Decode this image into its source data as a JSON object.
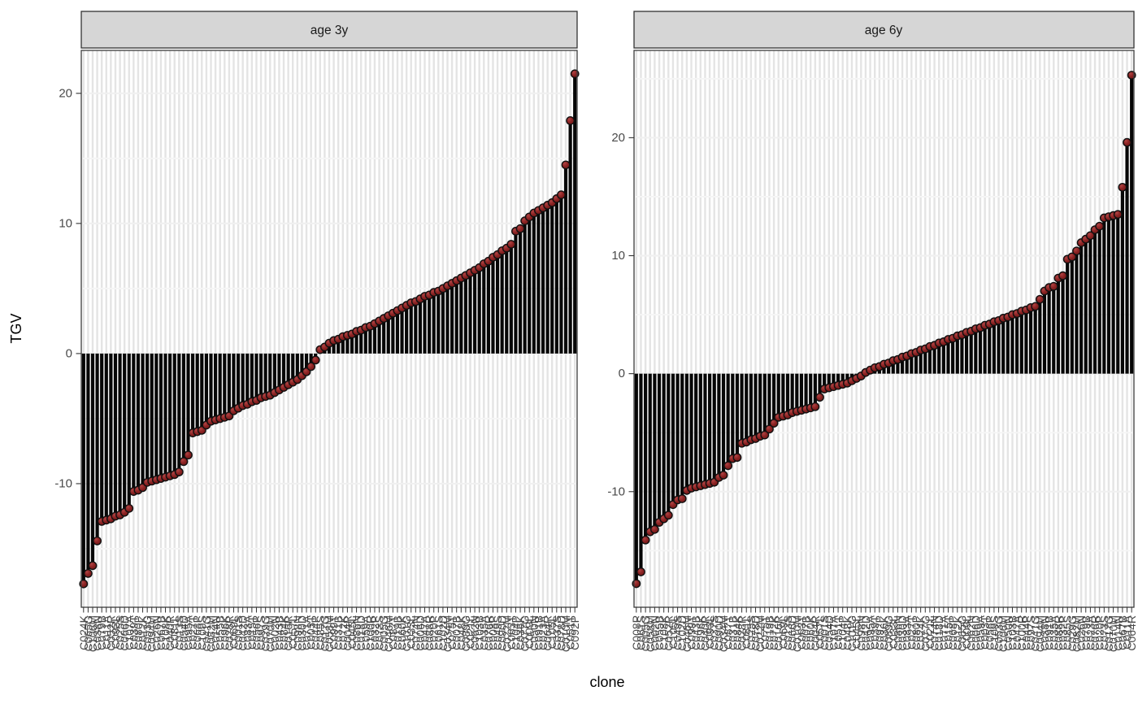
{
  "figure": {
    "x_axis_title": "clone",
    "y_axis_title": "TGV",
    "colors": {
      "bar": "#060606",
      "point_fill": "#8c2424",
      "point_fill_highlight": "#b04343",
      "point_fill_dark": "#6e1414",
      "point_stroke": "#101010",
      "strip_bg": "#d6d6d6",
      "panel_border": "#3c3c3c",
      "grid_vertical": "#e4e4e4",
      "grid_major": "#f0f0f0",
      "grid_minor": "#f5f5f5",
      "axis_text": "#4a4a4a",
      "tick": "#333333"
    }
  },
  "chart_data": [
    {
      "type": "bar",
      "facet": "age 3y",
      "xlabel": "clone",
      "ylabel": "TGV",
      "ylim": [
        -19.5,
        23.3
      ],
      "yticks_major": [
        -10,
        0,
        10,
        20
      ],
      "yticks_minor": [
        -15,
        -5,
        5,
        15
      ],
      "legend": "none",
      "categories": [
        "C024K",
        "C065G",
        "C106M",
        "C038N",
        "C079B",
        "C011A",
        "C052R",
        "C093L",
        "C025S",
        "C066D",
        "C107A",
        "C039T",
        "C080P",
        "C012K",
        "C053G",
        "C094M",
        "C026N",
        "C067B",
        "C108K",
        "C040R",
        "C081L",
        "C013S",
        "C054D",
        "C095A",
        "C027T",
        "C068P",
        "C109S",
        "C041G",
        "C082M",
        "C014N",
        "C055B",
        "C096K",
        "C028R",
        "C069L",
        "C001S",
        "C042D",
        "C083A",
        "C015T",
        "C056P",
        "C097S",
        "C029G",
        "C070M",
        "C002N",
        "C043B",
        "C084K",
        "C016R",
        "C057L",
        "C098N",
        "C030D",
        "C071A",
        "C003T",
        "C044P",
        "C085S",
        "C017G",
        "C058M",
        "C099T",
        "C031B",
        "C072K",
        "C004R",
        "C045L",
        "C086N",
        "C018D",
        "C059A",
        "C100R",
        "C032P",
        "C073S",
        "C005G",
        "C046M",
        "C087T",
        "C019B",
        "C060K",
        "C101G",
        "C033L",
        "C074N",
        "C006D",
        "C047A",
        "C088R",
        "C020P",
        "C061S",
        "C102D",
        "C034M",
        "C075T",
        "C007B",
        "C048K",
        "C089G",
        "C021L",
        "C062N",
        "C103B",
        "C035A",
        "C076R",
        "C008P",
        "C049S",
        "C090D",
        "C022M",
        "C063T",
        "C104P",
        "C036K",
        "C077G",
        "C009L",
        "C050N",
        "C091B",
        "C023A",
        "C064R",
        "C105L",
        "C037S",
        "C078D",
        "C010M",
        "C051T",
        "C092P"
      ],
      "values": [
        -17.7,
        -16.9,
        -16.3,
        -14.4,
        -12.9,
        -12.8,
        -12.7,
        -12.5,
        -12.4,
        -12.2,
        -11.9,
        -10.6,
        -10.5,
        -10.3,
        -9.9,
        -9.8,
        -9.7,
        -9.6,
        -9.5,
        -9.4,
        -9.3,
        -9.1,
        -8.3,
        -7.8,
        -6.1,
        -6.0,
        -5.9,
        -5.5,
        -5.2,
        -5.1,
        -5.0,
        -4.9,
        -4.8,
        -4.4,
        -4.2,
        -4.0,
        -3.9,
        -3.7,
        -3.6,
        -3.4,
        -3.3,
        -3.2,
        -3.0,
        -2.8,
        -2.6,
        -2.4,
        -2.2,
        -2.0,
        -1.7,
        -1.4,
        -1.0,
        -0.5,
        0.3,
        0.5,
        0.8,
        1.0,
        1.1,
        1.3,
        1.4,
        1.5,
        1.7,
        1.8,
        2.0,
        2.1,
        2.3,
        2.5,
        2.7,
        2.9,
        3.1,
        3.3,
        3.5,
        3.7,
        3.9,
        4.0,
        4.2,
        4.4,
        4.5,
        4.7,
        4.8,
        5.0,
        5.2,
        5.4,
        5.6,
        5.8,
        6.0,
        6.2,
        6.4,
        6.6,
        6.9,
        7.1,
        7.4,
        7.6,
        7.9,
        8.1,
        8.4,
        9.4,
        9.6,
        10.2,
        10.5,
        10.8,
        11.0,
        11.2,
        11.4,
        11.6,
        11.9,
        12.2,
        14.5,
        17.9,
        21.5
      ]
    },
    {
      "type": "bar",
      "facet": "age 6y",
      "xlabel": "clone",
      "ylabel": "TGV",
      "ylim": [
        -19.8,
        27.4
      ],
      "yticks_major": [
        -10,
        0,
        10,
        20
      ],
      "yticks_minor": [
        -15,
        -5,
        5,
        15,
        25
      ],
      "legend": "none",
      "categories": [
        "C008P",
        "C061S",
        "C005G",
        "C058M",
        "C002N",
        "C055B",
        "C108K",
        "C052R",
        "C105L",
        "C049S",
        "C102D",
        "C046M",
        "C099T",
        "C043B",
        "C096K",
        "C040R",
        "C093L",
        "C037S",
        "C090D",
        "C034M",
        "C087T",
        "C031B",
        "C084K",
        "C028R",
        "C081L",
        "C025S",
        "C078D",
        "C022M",
        "C075T",
        "C019B",
        "C072K",
        "C016R",
        "C069L",
        "C013S",
        "C066D",
        "C010M",
        "C063T",
        "C007B",
        "C060K",
        "C004R",
        "C057L",
        "C001S",
        "C054D",
        "C107A",
        "C051T",
        "C104P",
        "C048K",
        "C101G",
        "C045L",
        "C098N",
        "C042D",
        "C095A",
        "C039T",
        "C092P",
        "C036K",
        "C089G",
        "C033L",
        "C086N",
        "C030D",
        "C083A",
        "C027T",
        "C080P",
        "C024K",
        "C077G",
        "C021L",
        "C074N",
        "C018D",
        "C071A",
        "C015T",
        "C068P",
        "C012K",
        "C065G",
        "C009L",
        "C062N",
        "C006D",
        "C059A",
        "C003T",
        "C056P",
        "C109S",
        "C053G",
        "C106M",
        "C050N",
        "C103B",
        "C047A",
        "C100R",
        "C044P",
        "C097S",
        "C041G",
        "C094M",
        "C038N",
        "C091B",
        "C035A",
        "C088R",
        "C032P",
        "C085S",
        "C029G",
        "C082M",
        "C026N",
        "C079B",
        "C023A",
        "C076R",
        "C020P",
        "C073S",
        "C017G",
        "C070M",
        "C014N",
        "C067B",
        "C011A",
        "C064R"
      ],
      "values": [
        -17.8,
        -16.8,
        -14.1,
        -13.4,
        -13.2,
        -12.6,
        -12.3,
        -12.0,
        -11.1,
        -10.7,
        -10.6,
        -9.9,
        -9.7,
        -9.6,
        -9.5,
        -9.4,
        -9.3,
        -9.2,
        -8.8,
        -8.6,
        -7.8,
        -7.2,
        -7.1,
        -5.9,
        -5.8,
        -5.6,
        -5.5,
        -5.3,
        -5.2,
        -4.7,
        -4.2,
        -3.7,
        -3.6,
        -3.5,
        -3.3,
        -3.2,
        -3.1,
        -3.0,
        -2.9,
        -2.8,
        -2.0,
        -1.3,
        -1.2,
        -1.1,
        -1.0,
        -0.9,
        -0.8,
        -0.6,
        -0.4,
        -0.2,
        0.1,
        0.3,
        0.5,
        0.6,
        0.8,
        0.9,
        1.1,
        1.2,
        1.4,
        1.5,
        1.7,
        1.8,
        2.0,
        2.1,
        2.3,
        2.4,
        2.6,
        2.7,
        2.9,
        3.0,
        3.2,
        3.3,
        3.5,
        3.6,
        3.8,
        3.9,
        4.1,
        4.2,
        4.4,
        4.5,
        4.7,
        4.8,
        5.0,
        5.1,
        5.3,
        5.4,
        5.6,
        5.7,
        6.3,
        7.0,
        7.3,
        7.4,
        8.1,
        8.3,
        9.7,
        9.9,
        10.4,
        11.1,
        11.4,
        11.7,
        12.2,
        12.5,
        13.2,
        13.3,
        13.4,
        13.5,
        15.8,
        19.6,
        25.3
      ]
    }
  ]
}
